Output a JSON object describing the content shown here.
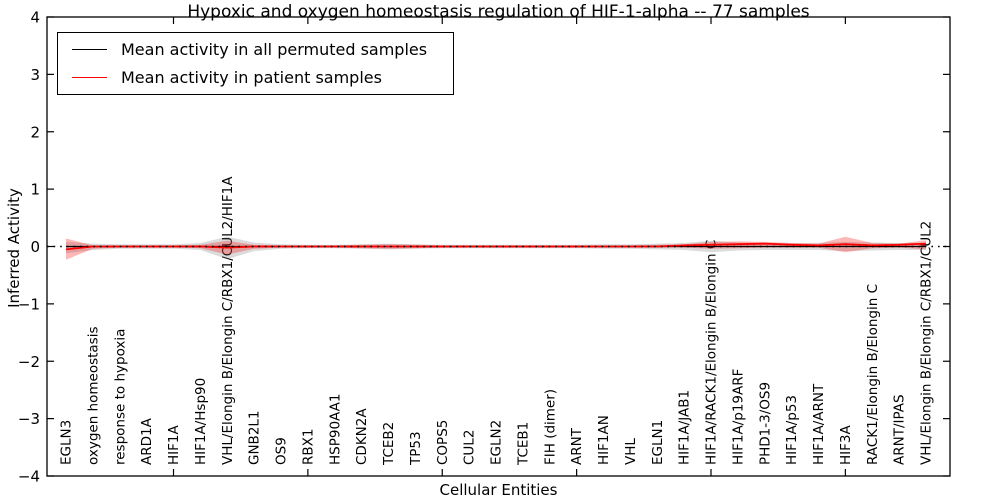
{
  "title": "Hypoxic and oxygen homeostasis regulation of HIF-1-alpha -- 77 samples",
  "axes": {
    "xlabel": "Cellular Entities",
    "ylabel": "Inferred Activity"
  },
  "legend": {
    "items": [
      {
        "label": "Mean activity in all permuted samples",
        "color": "#000000",
        "line_width": 1.2
      },
      {
        "label": "Mean activity in patient samples",
        "color": "#ff0000",
        "line_width": 1.8
      }
    ]
  },
  "colors": {
    "frame": "#000000",
    "background": "#ffffff",
    "zero_line": "#000000",
    "permuted_band": "rgba(110,110,110,0.25)",
    "patient_band": "rgba(255,0,0,0.28)"
  },
  "chart_data": {
    "type": "line",
    "title": "Hypoxic and oxygen homeostasis regulation of HIF-1-alpha -- 77 samples",
    "xlabel": "Cellular Entities",
    "ylabel": "Inferred Activity",
    "ylim": [
      -4,
      4
    ],
    "yticks": [
      4,
      3,
      2,
      1,
      0,
      -1,
      -2,
      -3,
      -4
    ],
    "ytick_labels": [
      "4",
      "3",
      "2",
      "1",
      "0",
      "−1",
      "−2",
      "−3",
      "−4"
    ],
    "xtick_major_indices": [
      4,
      9,
      14,
      19,
      24,
      29
    ],
    "grid": false,
    "zero_line_dotted": true,
    "legend_position": "upper left",
    "categories": [
      "EGLN3",
      "oxygen homeostasis",
      "response to hypoxia",
      "ARD1A",
      "HIF1A",
      "HIF1A/Hsp90",
      "VHL/Elongin B/Elongin C/RBX1/CUL2/HIF1A",
      "GNB2L1",
      "OS9",
      "RBX1",
      "HSP90AA1",
      "CDKN2A",
      "TCEB2",
      "TP53",
      "COPS5",
      "CUL2",
      "EGLN2",
      "TCEB1",
      "FIH (dimer)",
      "ARNT",
      "HIF1AN",
      "VHL",
      "EGLN1",
      "HIF1A/JAB1",
      "HIF1A/RACK1/Elongin B/Elongin C",
      "HIF1A/p19ARF",
      "PHD1-3/OS9",
      "HIF1A/p53",
      "HIF1A/ARNT",
      "HIF3A",
      "RACK1/Elongin B/Elongin C",
      "ARNT/IPAS",
      "VHL/Elongin B/Elongin C/RBX1/CUL2"
    ],
    "series": [
      {
        "name": "Mean activity in all permuted samples",
        "color": "#000000",
        "values": [
          0,
          0,
          0,
          0,
          0,
          0,
          0,
          0,
          0,
          0,
          0,
          0,
          0,
          0,
          0,
          0,
          0,
          0,
          0,
          0,
          0,
          0,
          0,
          0,
          0,
          0,
          0,
          0,
          0,
          0,
          0,
          0,
          0
        ],
        "band_hi": [
          0.08,
          0.05,
          0.04,
          0.04,
          0.04,
          0.06,
          0.17,
          0.07,
          0.04,
          0.03,
          0.03,
          0.04,
          0.05,
          0.04,
          0.03,
          0.03,
          0.03,
          0.03,
          0.03,
          0.03,
          0.04,
          0.04,
          0.05,
          0.06,
          0.1,
          0.07,
          0.06,
          0.06,
          0.06,
          0.08,
          0.07,
          0.06,
          0.06
        ],
        "band_lo": [
          -0.12,
          -0.06,
          -0.04,
          -0.04,
          -0.04,
          -0.06,
          -0.22,
          -0.08,
          -0.04,
          -0.03,
          -0.03,
          -0.04,
          -0.05,
          -0.04,
          -0.03,
          -0.03,
          -0.03,
          -0.03,
          -0.03,
          -0.03,
          -0.04,
          -0.04,
          -0.05,
          -0.06,
          -0.1,
          -0.07,
          -0.06,
          -0.06,
          -0.06,
          -0.08,
          -0.07,
          -0.06,
          -0.06
        ]
      },
      {
        "name": "Mean activity in patient samples",
        "color": "#ff0000",
        "values": [
          -0.05,
          0,
          0,
          0,
          0,
          0,
          -0.02,
          0,
          0,
          0,
          0,
          0,
          0,
          0,
          0,
          0,
          0,
          0,
          0,
          0,
          0,
          0,
          0,
          0.02,
          0.03,
          0.04,
          0.05,
          0.03,
          0.02,
          0.04,
          0.02,
          0.03,
          0.05
        ],
        "band_hi": [
          0.14,
          0.02,
          0.02,
          0.02,
          0.02,
          0.03,
          0.1,
          0.03,
          0.02,
          0.02,
          0.02,
          0.03,
          0.04,
          0.03,
          0.02,
          0.02,
          0.02,
          0.02,
          0.02,
          0.02,
          0.02,
          0.02,
          0.03,
          0.04,
          0.08,
          0.09,
          0.08,
          0.06,
          0.05,
          0.17,
          0.06,
          0.05,
          0.11
        ],
        "band_lo": [
          -0.23,
          -0.04,
          -0.02,
          -0.02,
          -0.02,
          -0.03,
          -0.14,
          -0.04,
          -0.02,
          -0.02,
          -0.02,
          -0.03,
          -0.04,
          -0.03,
          -0.02,
          -0.02,
          -0.02,
          -0.02,
          -0.02,
          -0.02,
          -0.02,
          -0.02,
          -0.02,
          -0.02,
          -0.04,
          -0.03,
          -0.02,
          -0.02,
          -0.02,
          -0.1,
          -0.03,
          -0.02,
          -0.05
        ]
      }
    ]
  }
}
